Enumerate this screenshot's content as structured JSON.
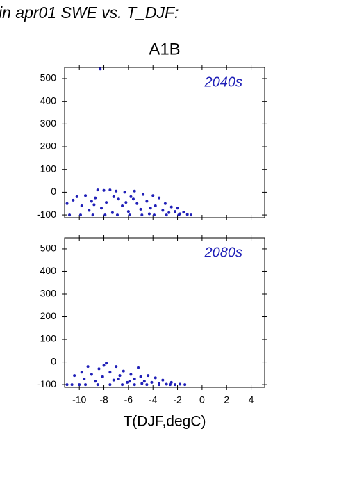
{
  "chart_data": [
    {
      "type": "scatter",
      "title": "in apr01 SWE vs. T_DJF:",
      "subtitle": "A1B",
      "annotation": "2040s",
      "color": "#2020b8",
      "xlim": [
        -11.2,
        5.1
      ],
      "ylim": [
        -112,
        549
      ],
      "xticks": [
        -10,
        -8,
        -6,
        -4,
        -2,
        0,
        2,
        4
      ],
      "yticks": [
        -100,
        0,
        100,
        200,
        300,
        400,
        500
      ],
      "x": [
        -8.3,
        -11,
        -10.5,
        -10.2,
        -9.8,
        -9.5,
        -9.2,
        -9,
        -8.7,
        -8.5,
        -8.2,
        -8,
        -7.8,
        -7.5,
        -7.3,
        -7,
        -6.8,
        -6.5,
        -6.3,
        -6,
        -5.8,
        -5.5,
        -5.3,
        -5,
        -4.8,
        -4.5,
        -4.3,
        -4,
        -3.8,
        -3.5,
        -3.2,
        -3,
        -2.7,
        -2.5,
        -2.2,
        -2,
        -1.8,
        -1.5,
        -1.2,
        -0.9,
        -10.8,
        -9.9,
        -8.9,
        -7.9,
        -6.9,
        -5.9,
        -4.9,
        -3.9,
        -2.9,
        -1.9,
        -6.2,
        -7.2,
        -8.8,
        -4.2,
        -5.6
      ],
      "y": [
        542,
        -50,
        -35,
        -20,
        -60,
        -15,
        -80,
        -40,
        -25,
        10,
        -70,
        8,
        -45,
        10,
        -90,
        5,
        -30,
        -60,
        0,
        -85,
        -20,
        5,
        -50,
        -75,
        -10,
        -40,
        -95,
        -15,
        -60,
        -25,
        -80,
        -50,
        -90,
        -65,
        -85,
        -70,
        -95,
        -88,
        -98,
        -100,
        -100,
        -100,
        -100,
        -100,
        -100,
        -100,
        -100,
        -100,
        -100,
        -100,
        -45,
        -20,
        -55,
        -70,
        -30
      ]
    },
    {
      "type": "scatter",
      "annotation": "2080s",
      "xlabel": "T(DJF,degC)",
      "color": "#2020b8",
      "xlim": [
        -11.2,
        5.1
      ],
      "ylim": [
        -112,
        549
      ],
      "xticks": [
        -10,
        -8,
        -6,
        -4,
        -2,
        0,
        2,
        4
      ],
      "yticks": [
        -100,
        0,
        100,
        200,
        300,
        400,
        500
      ],
      "x": [
        -11,
        -10.4,
        -10,
        -9.6,
        -9.3,
        -9,
        -8.7,
        -8.4,
        -8.1,
        -7.8,
        -7.5,
        -7.2,
        -7,
        -6.7,
        -6.4,
        -6.1,
        -5.8,
        -5.5,
        -5.2,
        -5,
        -4.7,
        -4.4,
        -4.1,
        -3.8,
        -3.5,
        -3.2,
        -2.9,
        -2.5,
        -2.2,
        -1.8,
        -1.4,
        -10.6,
        -9.5,
        -8.5,
        -7.5,
        -6.5,
        -5.5,
        -4.5,
        -3.5,
        -2.6,
        -8,
        -6.8,
        -9.8,
        -5.9,
        -4.9
      ],
      "y": [
        -100,
        -60,
        -100,
        -75,
        -20,
        -55,
        -85,
        -30,
        -65,
        -5,
        -45,
        -80,
        -20,
        -60,
        -40,
        -90,
        -55,
        -75,
        -25,
        -65,
        -85,
        -60,
        -90,
        -70,
        -95,
        -80,
        -98,
        -90,
        -100,
        -98,
        -100,
        -100,
        -100,
        -100,
        -100,
        -100,
        -100,
        -100,
        -100,
        -100,
        -15,
        -75,
        -45,
        -85,
        -95
      ]
    }
  ]
}
